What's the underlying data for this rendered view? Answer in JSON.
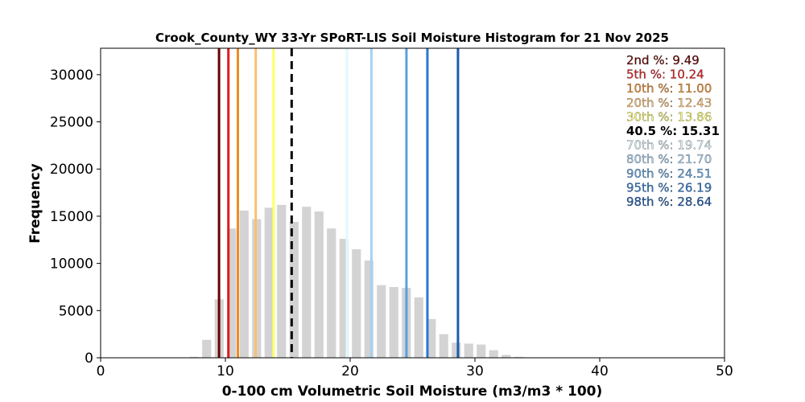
{
  "chart_data": {
    "type": "bar",
    "title": "Crook_County_WY 33-Yr SPoRT-LIS Soil Moisture Histogram for 21 Nov 2025",
    "xlabel": "0-100 cm Volumetric Soil Moisture (m3/m3 * 100)",
    "ylabel": "Frequency",
    "xlim": [
      0,
      50
    ],
    "ylim": [
      0,
      32800
    ],
    "xticks": [
      0,
      10,
      20,
      30,
      40,
      50
    ],
    "yticks": [
      0,
      5000,
      10000,
      15000,
      20000,
      25000,
      30000
    ],
    "grid": false,
    "bin_width": 1,
    "bar_color": "#d3d3d3",
    "bins": [
      {
        "x": 7.5,
        "count": 100
      },
      {
        "x": 8.5,
        "count": 1900
      },
      {
        "x": 9.5,
        "count": 6200
      },
      {
        "x": 10.5,
        "count": 13700
      },
      {
        "x": 11.5,
        "count": 15600
      },
      {
        "x": 12.5,
        "count": 14700
      },
      {
        "x": 13.5,
        "count": 15900
      },
      {
        "x": 14.5,
        "count": 16200
      },
      {
        "x": 15.5,
        "count": 14400
      },
      {
        "x": 16.5,
        "count": 16000
      },
      {
        "x": 17.5,
        "count": 15500
      },
      {
        "x": 18.5,
        "count": 13700
      },
      {
        "x": 19.5,
        "count": 12600
      },
      {
        "x": 20.5,
        "count": 11500
      },
      {
        "x": 21.5,
        "count": 10300
      },
      {
        "x": 22.5,
        "count": 7700
      },
      {
        "x": 23.5,
        "count": 7500
      },
      {
        "x": 24.5,
        "count": 7400
      },
      {
        "x": 25.5,
        "count": 6400
      },
      {
        "x": 26.5,
        "count": 4100
      },
      {
        "x": 27.5,
        "count": 2500
      },
      {
        "x": 28.5,
        "count": 1600
      },
      {
        "x": 29.5,
        "count": 1500
      },
      {
        "x": 30.5,
        "count": 1400
      },
      {
        "x": 31.5,
        "count": 800
      },
      {
        "x": 32.5,
        "count": 300
      },
      {
        "x": 33.5,
        "count": 100
      }
    ],
    "percentiles": [
      {
        "label": "2nd %: 9.49",
        "value": 9.49,
        "color": "#6b0000",
        "dashed": false
      },
      {
        "label": "5th %: 10.24",
        "value": 10.24,
        "color": "#e31a1c",
        "dashed": false
      },
      {
        "label": "10th %: 11.00",
        "value": 11.0,
        "color": "#f08c28",
        "dashed": false
      },
      {
        "label": "20th %: 12.43",
        "value": 12.43,
        "color": "#fdbf6f",
        "dashed": false
      },
      {
        "label": "30th %: 13.86",
        "value": 13.86,
        "color": "#ffff66",
        "dashed": false
      },
      {
        "label": "40.5 %: 15.31",
        "value": 15.31,
        "color": "#000000",
        "dashed": true
      },
      {
        "label": "70th %: 19.74",
        "value": 19.74,
        "color": "#e0f8ff",
        "dashed": false
      },
      {
        "label": "80th %: 21.70",
        "value": 21.7,
        "color": "#a6d0f0",
        "dashed": false
      },
      {
        "label": "90th %: 24.51",
        "value": 24.51,
        "color": "#5aa0e0",
        "dashed": false
      },
      {
        "label": "95th %: 26.19",
        "value": 26.19,
        "color": "#2b78d0",
        "dashed": false
      },
      {
        "label": "98th %: 28.64",
        "value": 28.64,
        "color": "#1a5cb0",
        "dashed": false
      }
    ],
    "legend_placement": "top-right"
  }
}
